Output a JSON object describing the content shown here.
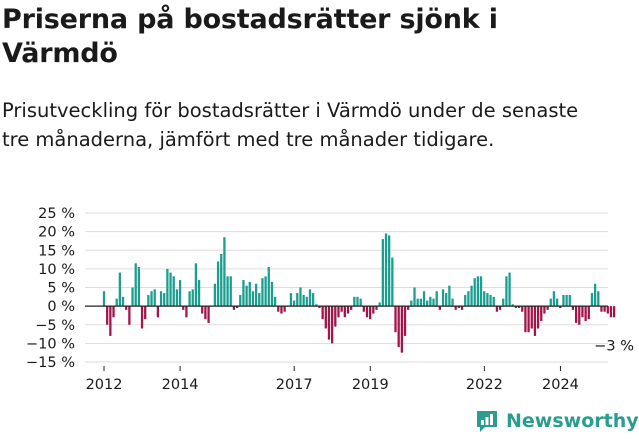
{
  "title": "Priserna på bostadsrätter sjönk i Värmdö",
  "subtitle": "Prisutveckling för bostadsrätter i Värmdö under de senaste tre månaderna, jämfört med tre månader tidigare.",
  "brand": {
    "name": "Newsworthy",
    "color": "#2a9d8f"
  },
  "colors": {
    "positive": "#1a9e8f",
    "negative": "#a3144a",
    "grid": "#dddddd",
    "zero_line": "#222222"
  },
  "chart_data": {
    "type": "bar",
    "title": "Priserna på bostadsrätter sjönk i Värmdö",
    "xlabel": "",
    "ylabel": "",
    "ylim": [
      -15,
      25
    ],
    "yticks": [
      25,
      20,
      15,
      10,
      5,
      0,
      -5,
      -10,
      -15
    ],
    "ytick_labels": [
      "25 %",
      "20 %",
      "15 %",
      "10 %",
      "5 %",
      "0 %",
      "−5 %",
      "−10 %",
      "−15 %"
    ],
    "xlim": [
      2011.5,
      2025.25
    ],
    "xticks": [
      2012,
      2014,
      2017,
      2019,
      2022,
      2024
    ],
    "xtick_labels": [
      "2012",
      "2014",
      "2017",
      "2019",
      "2022",
      "2024"
    ],
    "start": 2012,
    "bar_step_years": 0.0833,
    "values": [
      4,
      -5,
      -8,
      -3,
      2,
      9,
      2.5,
      -1,
      -5,
      5,
      11.5,
      10.5,
      -6,
      -3.5,
      3,
      4,
      4.5,
      -3,
      4,
      3.5,
      10,
      9,
      8,
      4.5,
      7,
      -1,
      -3,
      4,
      4.5,
      11.5,
      7,
      -2,
      -3.5,
      -4.5,
      0,
      6,
      12,
      14,
      18.5,
      8,
      8,
      -1,
      -0.5,
      3,
      7,
      5.5,
      6.5,
      4,
      6,
      3.5,
      7.5,
      8,
      10.5,
      6.5,
      2.5,
      -1.5,
      -2,
      -1.5,
      0,
      3.5,
      1.5,
      3.5,
      5,
      3,
      2.5,
      4.5,
      3.5,
      0.5,
      -0.5,
      -3.5,
      -6,
      -9,
      -10,
      -5.5,
      -3,
      -1.5,
      -3,
      -2,
      -1,
      2.5,
      2.5,
      2,
      -1.5,
      -3,
      -3.5,
      -2,
      -1,
      1,
      18,
      19.5,
      19,
      13,
      -7,
      -11,
      -12.5,
      -8,
      -1,
      1.5,
      5,
      2,
      2,
      4,
      1.5,
      2.5,
      2,
      4,
      -1,
      4.5,
      3.5,
      5.5,
      2,
      -1,
      -0.5,
      -1,
      3,
      4,
      5.5,
      7.5,
      8,
      8,
      4,
      3.5,
      3,
      2.5,
      -1.5,
      -1,
      2,
      8,
      9,
      0.5,
      -0.5,
      -0.5,
      -1.5,
      -7,
      -7,
      -6,
      -8,
      -6,
      -4,
      -2,
      -1,
      2,
      4,
      2,
      -0.5,
      3,
      3,
      3,
      -1,
      -4.5,
      -5,
      -3,
      -4,
      -3.5,
      3.5,
      6,
      4,
      -1.5,
      -1.5,
      -2,
      -3,
      -3
    ],
    "annotation": "−3 %"
  }
}
